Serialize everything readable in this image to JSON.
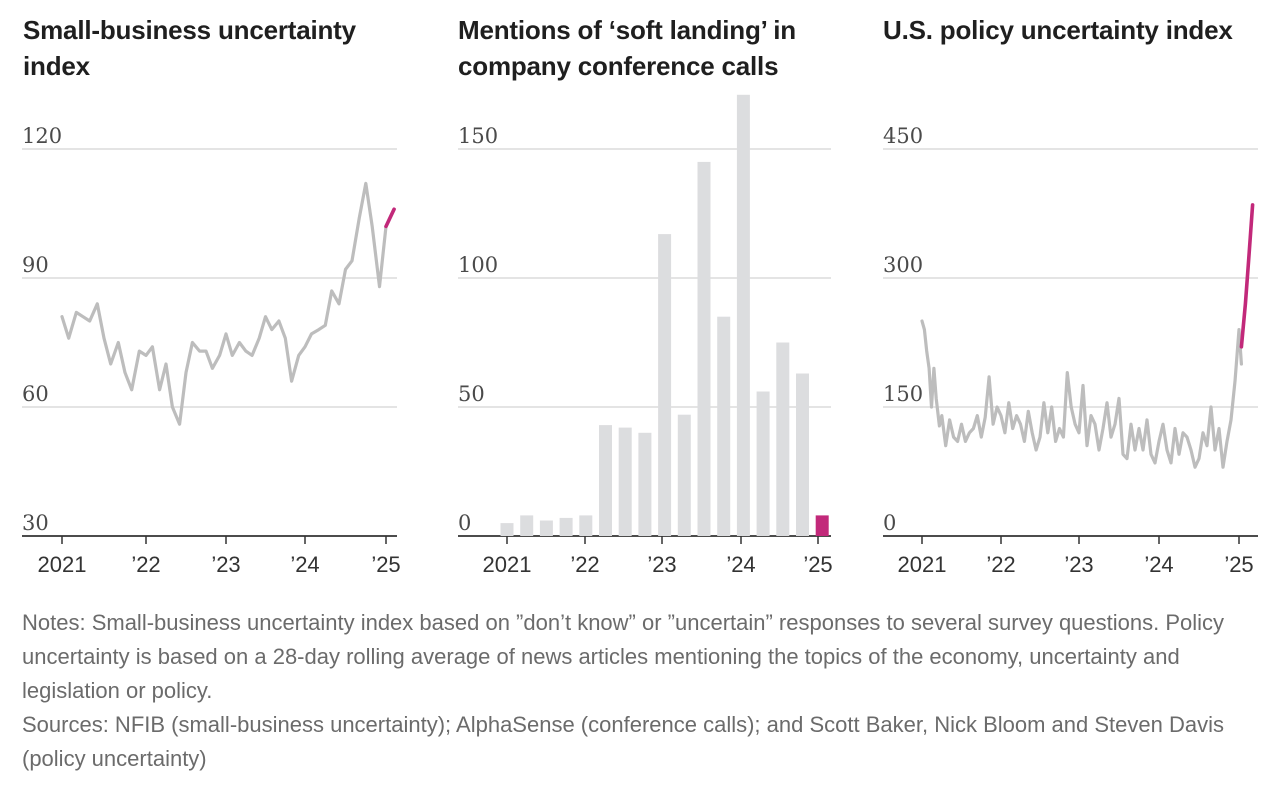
{
  "chart_data": [
    {
      "type": "line",
      "title": "Small-business uncertainty index",
      "ylim": [
        30,
        120
      ],
      "yticks": [
        "30",
        "60",
        "90",
        "120"
      ],
      "x_labels": [
        "2021",
        "’22",
        "’23",
        "’24",
        "’25"
      ],
      "x_range": [
        2021.0,
        2025.2
      ],
      "highlight_color": "#c2297a",
      "line_color": "#bdbdbd",
      "series": [
        {
          "name": "Small-business uncertainty",
          "x": [
            2021.0,
            2021.08,
            2021.17,
            2021.25,
            2021.33,
            2021.42,
            2021.5,
            2021.58,
            2021.67,
            2021.75,
            2021.83,
            2021.92,
            2022.0,
            2022.08,
            2022.17,
            2022.25,
            2022.33,
            2022.42,
            2022.5,
            2022.58,
            2022.67,
            2022.75,
            2022.83,
            2022.92,
            2023.0,
            2023.08,
            2023.17,
            2023.25,
            2023.33,
            2023.42,
            2023.5,
            2023.58,
            2023.67,
            2023.75,
            2023.83,
            2023.92,
            2024.0,
            2024.08,
            2024.17,
            2024.25,
            2024.33,
            2024.42,
            2024.5,
            2024.58,
            2024.67,
            2024.75,
            2024.83,
            2024.92,
            2025.0
          ],
          "values": [
            81,
            76,
            82,
            81,
            80,
            84,
            76,
            70,
            75,
            68,
            64,
            73,
            72,
            74,
            64,
            70,
            60,
            56,
            68,
            75,
            73,
            73,
            69,
            72,
            77,
            72,
            75,
            73,
            72,
            76,
            81,
            78,
            80,
            76,
            66,
            72,
            74,
            77,
            78,
            79,
            87,
            84,
            92,
            94,
            104,
            112,
            102,
            88,
            102
          ]
        },
        {
          "name": "Latest",
          "x": [
            2025.0,
            2025.1
          ],
          "values": [
            102,
            106
          ]
        }
      ]
    },
    {
      "type": "bar",
      "title": "Mentions of ‘soft landing’ in company conference calls",
      "ylim": [
        0,
        150
      ],
      "yticks": [
        "0",
        "50",
        "100",
        "150"
      ],
      "x_labels": [
        "2021",
        "’22",
        "’23",
        "’24",
        "’25"
      ],
      "categories": [
        "Q1 2021",
        "Q2 2021",
        "Q3 2021",
        "Q4 2021",
        "Q1 2022",
        "Q2 2022",
        "Q3 2022",
        "Q4 2022",
        "Q1 2023",
        "Q2 2023",
        "Q3 2023",
        "Q4 2023",
        "Q1 2024",
        "Q2 2024",
        "Q3 2024",
        "Q4 2024",
        "Q1 2025"
      ],
      "values": [
        5,
        8,
        6,
        7,
        8,
        43,
        42,
        40,
        117,
        47,
        145,
        85,
        171,
        56,
        75,
        63,
        8
      ],
      "highlight_index": 16,
      "highlight_color": "#c2297a",
      "bar_color": "#dcdddf"
    },
    {
      "type": "line",
      "title": "U.S. policy uncertainty index",
      "ylim": [
        0,
        450
      ],
      "yticks": [
        "0",
        "150",
        "300",
        "450"
      ],
      "x_labels": [
        "2021",
        "’22",
        "’23",
        "’24",
        "’25"
      ],
      "x_range": [
        2021.0,
        2025.2
      ],
      "highlight_color": "#c2297a",
      "line_color": "#bdbdbd",
      "series": [
        {
          "name": "Policy uncertainty",
          "x": [
            2021.0,
            2021.03,
            2021.06,
            2021.09,
            2021.12,
            2021.15,
            2021.18,
            2021.22,
            2021.25,
            2021.3,
            2021.35,
            2021.4,
            2021.45,
            2021.5,
            2021.55,
            2021.6,
            2021.65,
            2021.7,
            2021.75,
            2021.8,
            2021.85,
            2021.9,
            2021.95,
            2022.0,
            2022.05,
            2022.1,
            2022.15,
            2022.2,
            2022.25,
            2022.3,
            2022.35,
            2022.4,
            2022.45,
            2022.5,
            2022.55,
            2022.6,
            2022.65,
            2022.7,
            2022.75,
            2022.8,
            2022.85,
            2022.9,
            2022.95,
            2023.0,
            2023.05,
            2023.1,
            2023.15,
            2023.2,
            2023.25,
            2023.3,
            2023.35,
            2023.4,
            2023.45,
            2023.5,
            2023.55,
            2023.6,
            2023.65,
            2023.7,
            2023.75,
            2023.8,
            2023.85,
            2023.9,
            2023.95,
            2024.0,
            2024.05,
            2024.1,
            2024.15,
            2024.2,
            2024.25,
            2024.3,
            2024.35,
            2024.4,
            2024.45,
            2024.5,
            2024.55,
            2024.6,
            2024.65,
            2024.7,
            2024.75,
            2024.8,
            2024.85,
            2024.9,
            2024.95,
            2025.0,
            2025.03
          ],
          "values": [
            250,
            240,
            215,
            195,
            150,
            195,
            160,
            128,
            140,
            105,
            135,
            115,
            110,
            130,
            110,
            120,
            125,
            140,
            115,
            138,
            185,
            130,
            150,
            140,
            120,
            155,
            125,
            140,
            130,
            110,
            145,
            120,
            100,
            115,
            155,
            120,
            150,
            110,
            125,
            115,
            190,
            150,
            130,
            120,
            175,
            105,
            140,
            130,
            100,
            125,
            155,
            115,
            130,
            160,
            95,
            90,
            130,
            100,
            125,
            100,
            135,
            95,
            85,
            110,
            130,
            100,
            85,
            125,
            95,
            120,
            115,
            100,
            80,
            90,
            120,
            105,
            150,
            100,
            125,
            80,
            110,
            135,
            180,
            240,
            200
          ]
        },
        {
          "name": "Latest",
          "x": [
            2025.03,
            2025.08,
            2025.12,
            2025.17
          ],
          "values": [
            220,
            270,
            320,
            385
          ]
        }
      ]
    }
  ],
  "notes": {
    "note_text": "Notes: Small-business uncertainty index based on ”don’t know” or ”uncertain” responses to several survey questions. Policy uncertainty is based on a  28-day rolling average of news articles mentioning the topics of the economy, uncertainty and legislation or policy.",
    "sources_text": "Sources: NFIB (small-business uncertainty); AlphaSense (conference calls); and Scott Baker, Nick Bloom and Steven Davis (policy uncertainty)"
  }
}
